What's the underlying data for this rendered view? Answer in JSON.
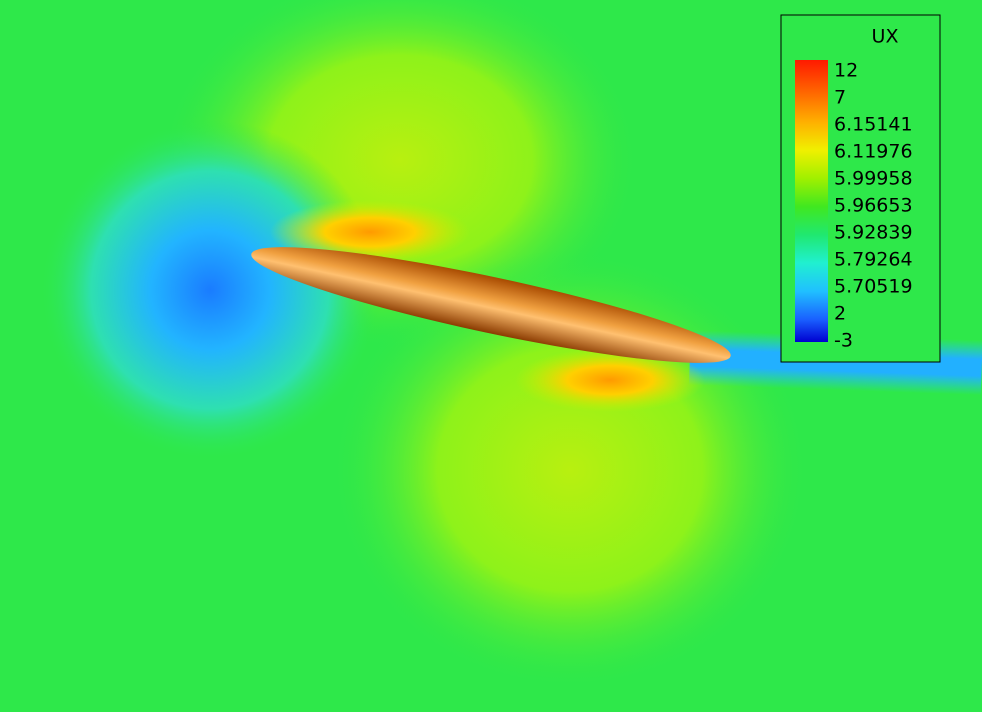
{
  "legend": {
    "title": "UX",
    "labels": [
      "12",
      "7",
      "6.15141",
      "6.11976",
      "5.99958",
      "5.96653",
      "5.92839",
      "5.79264",
      "5.70519",
      "2",
      "-3"
    ]
  }
}
